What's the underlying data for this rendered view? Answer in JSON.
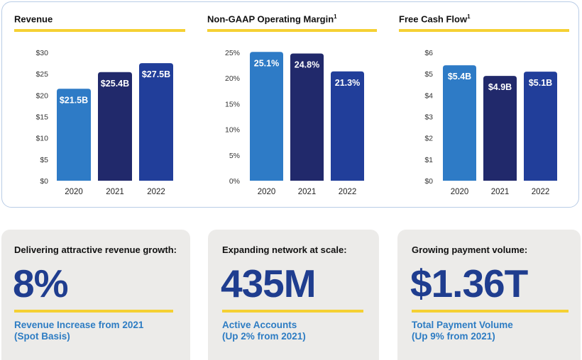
{
  "colors": {
    "light_blue": "#2e7bc6",
    "navy": "#21296b",
    "royal": "#213e9a",
    "yellow": "#f5d033",
    "accent_text": "#2d7cc3",
    "big_number": "#1f3d8f"
  },
  "chart_data": [
    {
      "type": "bar",
      "title": "Revenue",
      "footnote": "",
      "categories": [
        "2020",
        "2021",
        "2022"
      ],
      "values": [
        21.5,
        25.4,
        27.5
      ],
      "data_labels": [
        "$21.5B",
        "$25.4B",
        "$27.5B"
      ],
      "yticks": [
        0,
        5,
        10,
        15,
        20,
        25,
        30
      ],
      "ytick_labels": [
        "$0",
        "$5",
        "$10",
        "$15",
        "$20",
        "$25",
        "$30"
      ],
      "ylim": [
        0,
        30
      ],
      "bar_colors": [
        "#2e7bc6",
        "#21296b",
        "#213e9a"
      ]
    },
    {
      "type": "bar",
      "title": "Non-GAAP Operating Margin",
      "footnote": "1",
      "categories": [
        "2020",
        "2021",
        "2022"
      ],
      "values": [
        25.1,
        24.8,
        21.3
      ],
      "data_labels": [
        "25.1%",
        "24.8%",
        "21.3%"
      ],
      "yticks": [
        0,
        5,
        10,
        15,
        20,
        25
      ],
      "ytick_labels": [
        "0%",
        "5%",
        "10%",
        "15%",
        "20%",
        "25%"
      ],
      "ylim": [
        0,
        25
      ],
      "bar_colors": [
        "#2e7bc6",
        "#21296b",
        "#213e9a"
      ]
    },
    {
      "type": "bar",
      "title": "Free Cash Flow",
      "footnote": "1",
      "categories": [
        "2020",
        "2021",
        "2022"
      ],
      "values": [
        5.4,
        4.9,
        5.1
      ],
      "data_labels": [
        "$5.4B",
        "$4.9B",
        "$5.1B"
      ],
      "yticks": [
        0,
        1,
        2,
        3,
        4,
        5,
        6
      ],
      "ytick_labels": [
        "$0",
        "$1",
        "$2",
        "$3",
        "$4",
        "$5",
        "$6"
      ],
      "ylim": [
        0,
        6
      ],
      "bar_colors": [
        "#2e7bc6",
        "#21296b",
        "#213e9a"
      ]
    }
  ],
  "cards": [
    {
      "heading": "Delivering attractive revenue growth:",
      "big_value": "8%",
      "sub_line1": "Revenue Increase from 2021",
      "sub_line2": "(Spot Basis)"
    },
    {
      "heading": "Expanding network at scale:",
      "big_value": "435M",
      "sub_line1": "Active Accounts",
      "sub_line2": "(Up 2% from 2021)"
    },
    {
      "heading": "Growing payment volume:",
      "big_value": "$1.36T",
      "sub_line1": "Total Payment Volume",
      "sub_line2": "(Up 9% from 2021)"
    }
  ]
}
